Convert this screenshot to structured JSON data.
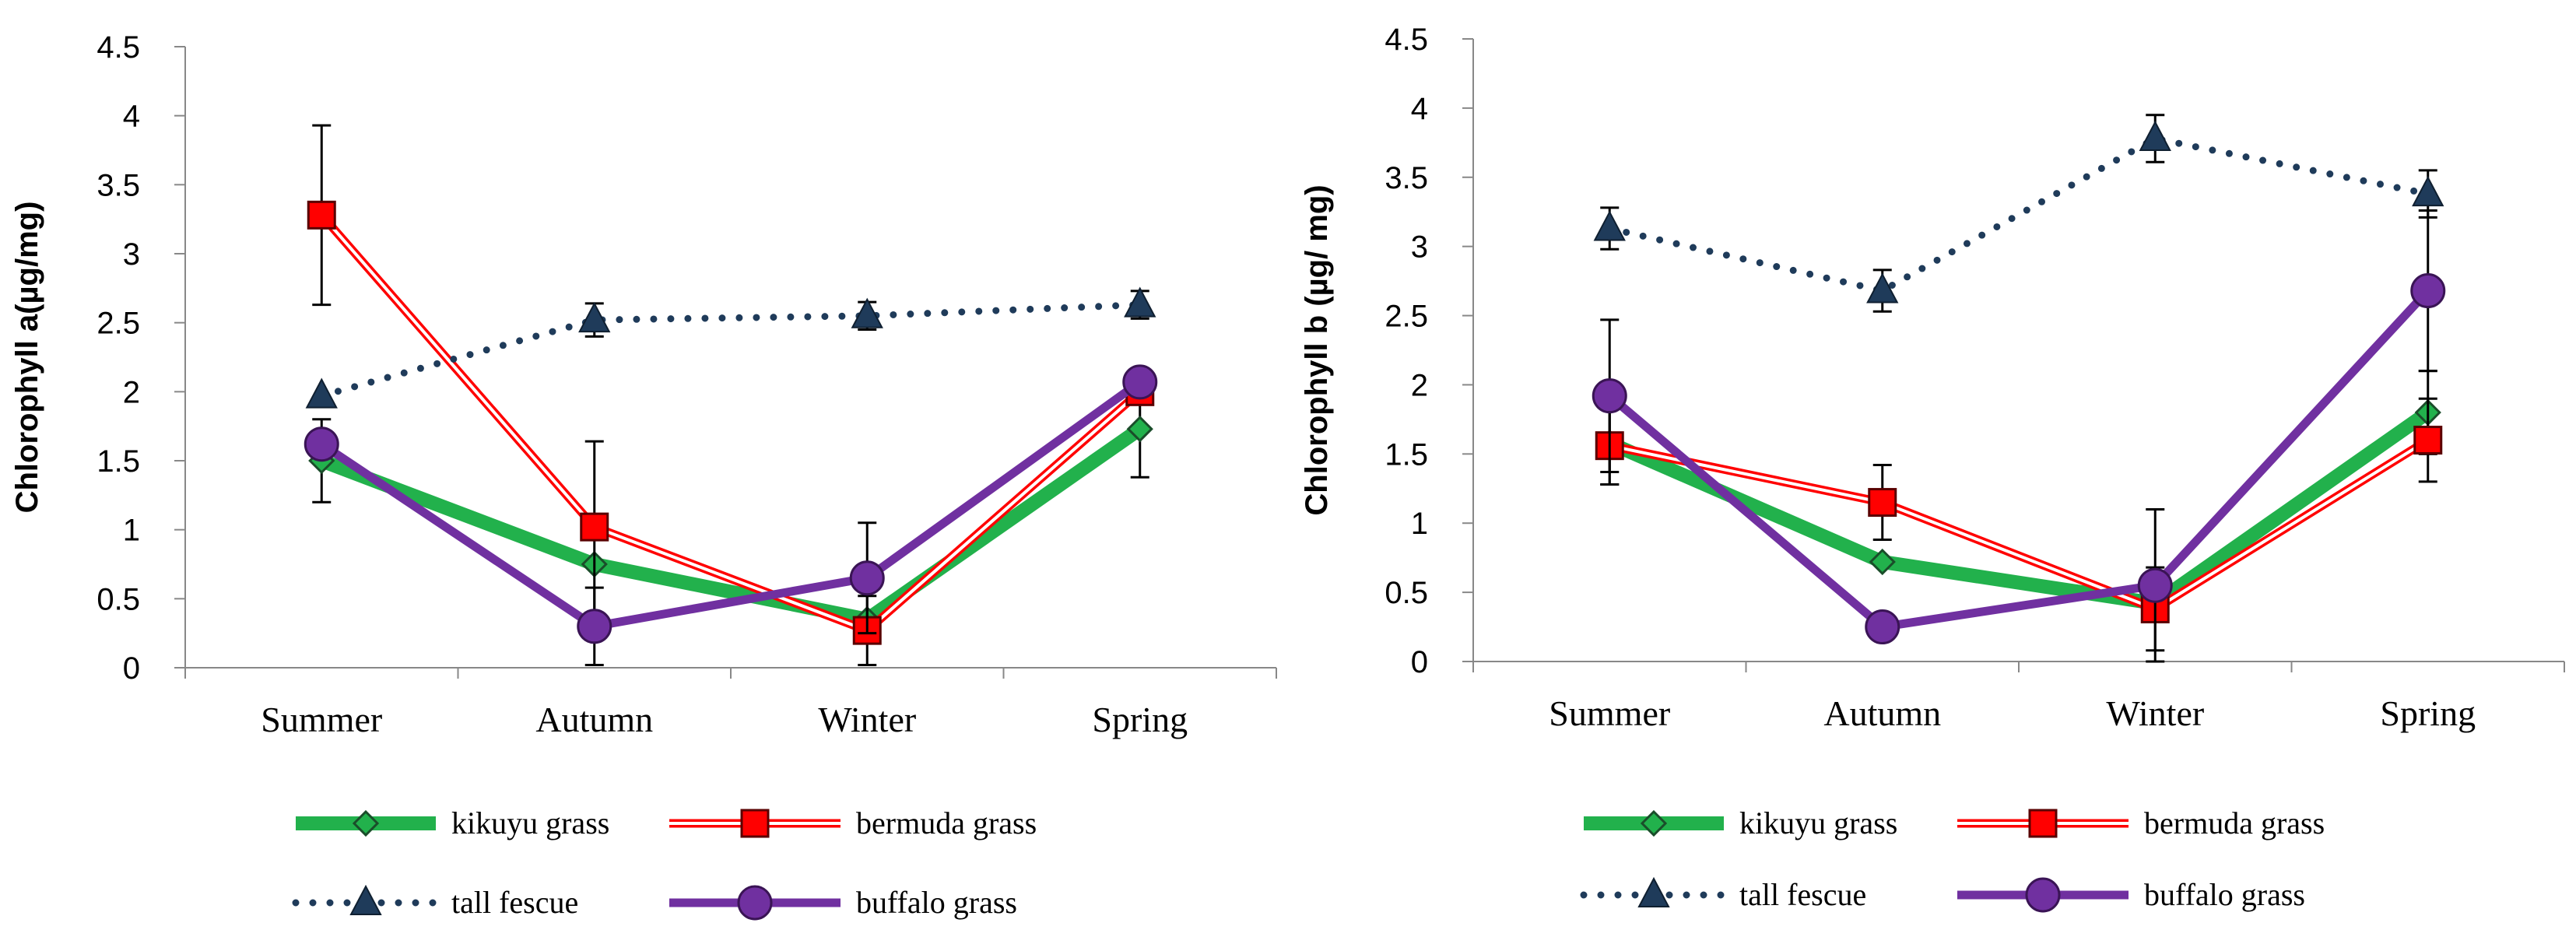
{
  "chart_data": [
    {
      "type": "line",
      "title": "",
      "xlabel": "",
      "ylabel": "Chlorophyll a(µg/mg)",
      "ylim": [
        0,
        4.5
      ],
      "ytick_step": 0.5,
      "categories": [
        "Summer",
        "Autumn",
        "Winter",
        "Spring"
      ],
      "series": [
        {
          "name": "kikuyu grass",
          "values": [
            1.5,
            0.75,
            0.35,
            1.73
          ],
          "errors": [
            0.3,
            0.0,
            0.0,
            0.35
          ],
          "color": "#22b14c",
          "marker": "diamond",
          "style": "thick"
        },
        {
          "name": "bermuda grass",
          "values": [
            3.28,
            1.02,
            0.27,
            2.0
          ],
          "errors": [
            0.65,
            0.62,
            0.25,
            0.0
          ],
          "color": "#ff0000",
          "marker": "square",
          "style": "double"
        },
        {
          "name": "tall fescue",
          "values": [
            1.97,
            2.52,
            2.55,
            2.63
          ],
          "errors": [
            0.0,
            0.12,
            0.1,
            0.1
          ],
          "color": "#1f3b5a",
          "marker": "triangle",
          "style": "dotted"
        },
        {
          "name": "buffalo grass",
          "values": [
            1.62,
            0.3,
            0.65,
            2.07
          ],
          "errors": [
            0.0,
            0.28,
            0.4,
            0.0
          ],
          "color": "#7030a0",
          "marker": "circle",
          "style": "solid"
        }
      ]
    },
    {
      "type": "line",
      "title": "",
      "xlabel": "",
      "ylabel": "Chlorophyll b (µg/ mg)",
      "ylim": [
        0,
        4.5
      ],
      "ytick_step": 0.5,
      "categories": [
        "Summer",
        "Autumn",
        "Winter",
        "Spring"
      ],
      "series": [
        {
          "name": "kikuyu grass",
          "values": [
            1.58,
            0.72,
            0.42,
            1.8
          ],
          "errors": [
            0.3,
            0.0,
            0.0,
            0.3
          ],
          "color": "#22b14c",
          "marker": "diamond",
          "style": "thick"
        },
        {
          "name": "bermuda grass",
          "values": [
            1.56,
            1.15,
            0.38,
            1.6
          ],
          "errors": [
            0.28,
            0.27,
            0.3,
            0.3
          ],
          "color": "#ff0000",
          "marker": "square",
          "style": "double"
        },
        {
          "name": "tall fescue",
          "values": [
            3.13,
            2.68,
            3.78,
            3.38
          ],
          "errors": [
            0.15,
            0.15,
            0.17,
            0.17
          ],
          "color": "#1f3b5a",
          "marker": "triangle",
          "style": "dotted"
        },
        {
          "name": "buffalo grass",
          "values": [
            1.92,
            0.25,
            0.55,
            2.68
          ],
          "errors": [
            0.55,
            0.0,
            0.55,
            0.58
          ],
          "color": "#7030a0",
          "marker": "circle",
          "style": "solid"
        }
      ]
    }
  ]
}
